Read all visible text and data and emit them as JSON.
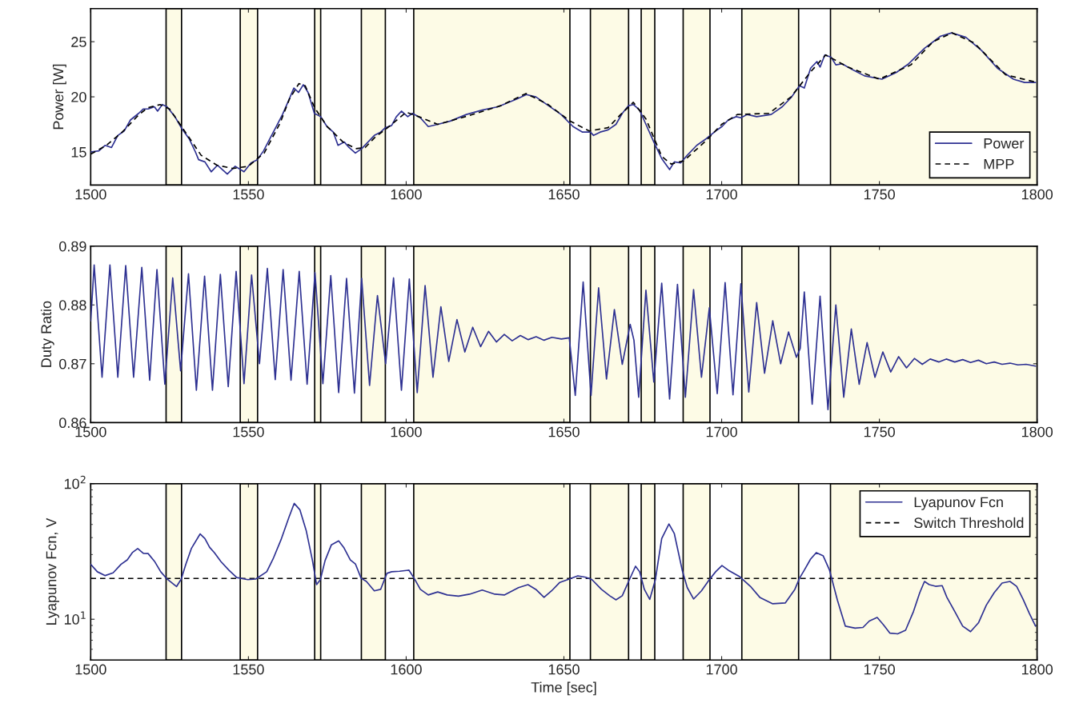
{
  "chart_data": [
    {
      "type": "line",
      "ylabel": "Power [W]",
      "xlim": [
        1500,
        1800
      ],
      "xticks": [
        1500,
        1550,
        1600,
        1650,
        1700,
        1750,
        1800
      ],
      "ylim": [
        12,
        28
      ],
      "yticks": [
        15,
        20,
        25
      ],
      "legend": "bottom right",
      "grid": false,
      "bands": [
        {
          "axis": "x",
          "from": 1523.9,
          "to": 1528.8,
          "color": "#fdfbe6"
        },
        {
          "axis": "x",
          "from": 1547.4,
          "to": 1552.9,
          "color": "#fdfbe6"
        },
        {
          "axis": "x",
          "from": 1571.0,
          "to": 1572.9,
          "color": "#fdfbe6"
        },
        {
          "axis": "x",
          "from": 1585.8,
          "to": 1593.4,
          "color": "#fdfbe6"
        },
        {
          "axis": "x",
          "from": 1602.4,
          "to": 1651.9,
          "color": "#fdfbe6"
        },
        {
          "axis": "x",
          "from": 1658.4,
          "to": 1670.5,
          "color": "#fdfbe6"
        },
        {
          "axis": "x",
          "from": 1674.5,
          "to": 1678.8,
          "color": "#fdfbe6"
        },
        {
          "axis": "x",
          "from": 1687.8,
          "to": 1696.3,
          "color": "#fdfbe6"
        },
        {
          "axis": "x",
          "from": 1706.4,
          "to": 1724.4,
          "color": "#fdfbe6"
        },
        {
          "axis": "x",
          "from": 1734.5,
          "to": 1800,
          "color": "#fdfbe6"
        }
      ],
      "series": [
        {
          "name": "Power",
          "color": "#2e3192",
          "line_style": "solid",
          "x": [
            1500,
            1502.6,
            1504.6,
            1506.6,
            1508.6,
            1510.6,
            1512.6,
            1515.2,
            1516.7,
            1518.2,
            1520.2,
            1521.2,
            1522.7,
            1524.2,
            1526.7,
            1528.7,
            1531.2,
            1533.2,
            1534.2,
            1536.2,
            1538.2,
            1540.2,
            1543.3,
            1545.8,
            1548.6,
            1550.8,
            1552.8,
            1554.8,
            1556.8,
            1558.8,
            1560.8,
            1562.8,
            1564.4,
            1565.9,
            1567.4,
            1568.9,
            1570.9,
            1572.9,
            1574.9,
            1576.9,
            1578.4,
            1580.4,
            1581.9,
            1583.9,
            1585.9,
            1587.9,
            1589.9,
            1591.9,
            1593.4,
            1595.4,
            1596.9,
            1598.5,
            1600.5,
            1602.0,
            1604.5,
            1607.0,
            1610.0,
            1614.0,
            1619.1,
            1624.1,
            1629.1,
            1635.1,
            1638.1,
            1641.1,
            1645.1,
            1649.1,
            1652.9,
            1655.9,
            1658.4,
            1659.4,
            1661.5,
            1664.0,
            1666.5,
            1668.5,
            1670.5,
            1672.0,
            1674.0,
            1676.0,
            1678.5,
            1681.0,
            1683.5,
            1685.0,
            1687.0,
            1689.1,
            1692.1,
            1695.1,
            1698.1,
            1700.1,
            1702.1,
            1704.6,
            1706.1,
            1708.1,
            1711.1,
            1715.7,
            1719.2,
            1722.2,
            1724.7,
            1726.2,
            1728.2,
            1730.2,
            1731.2,
            1732.7,
            1734.7,
            1736.2,
            1738.2,
            1741.2,
            1745.3,
            1750.8,
            1755.3,
            1759.3,
            1764.3,
            1769.4,
            1772.9,
            1777.4,
            1782.4,
            1787.4,
            1792.5,
            1796.0,
            1799.5
          ],
          "values": [
            15.0,
            15.1,
            15.6,
            15.4,
            16.5,
            16.9,
            17.9,
            18.5,
            18.9,
            18.9,
            19.1,
            18.7,
            19.3,
            19.1,
            18.2,
            17.2,
            16.2,
            15.0,
            14.3,
            14.1,
            13.2,
            13.8,
            13.0,
            13.7,
            13.2,
            14.0,
            14.3,
            15.1,
            16.2,
            17.3,
            18.4,
            19.7,
            20.8,
            20.4,
            21.1,
            20.4,
            18.5,
            18.2,
            17.3,
            16.8,
            15.6,
            15.9,
            15.4,
            14.9,
            15.3,
            15.9,
            16.5,
            16.8,
            17.2,
            17.4,
            18.2,
            18.7,
            18.2,
            18.5,
            18.1,
            17.3,
            17.5,
            17.8,
            18.4,
            18.8,
            19.1,
            19.8,
            20.2,
            20.0,
            19.2,
            18.4,
            17.3,
            16.8,
            16.8,
            16.5,
            16.8,
            17.0,
            17.5,
            18.5,
            19.2,
            19.3,
            18.8,
            17.5,
            15.9,
            14.4,
            13.4,
            14.1,
            14.0,
            14.7,
            15.6,
            16.2,
            16.9,
            17.3,
            17.9,
            18.2,
            18.1,
            18.4,
            18.2,
            18.4,
            19.1,
            20.0,
            21.0,
            20.8,
            22.6,
            23.2,
            22.7,
            23.8,
            23.6,
            22.9,
            23.0,
            22.5,
            21.9,
            21.6,
            22.2,
            23.0,
            24.4,
            25.5,
            25.8,
            25.4,
            24.2,
            22.6,
            21.6,
            21.3,
            21.3
          ]
        },
        {
          "name": "MPP",
          "color": "#000000",
          "line_style": "dashed",
          "x": [
            1500,
            1505,
            1510,
            1515,
            1518,
            1522,
            1525,
            1530,
            1535,
            1540,
            1545,
            1550,
            1555,
            1560,
            1563,
            1566,
            1568,
            1571,
            1575,
            1580,
            1584,
            1587,
            1590,
            1595,
            1600,
            1604,
            1610,
            1620,
            1630,
            1638,
            1645,
            1652,
            1658,
            1664,
            1668,
            1672,
            1676,
            1681,
            1684,
            1688,
            1695,
            1700,
            1705,
            1715,
            1722,
            1728,
            1733,
            1740,
            1750,
            1760,
            1767,
            1773,
            1780,
            1790,
            1800
          ],
          "values": [
            14.8,
            15.6,
            16.8,
            18.3,
            19.0,
            19.3,
            18.9,
            16.8,
            14.7,
            13.8,
            13.5,
            13.7,
            14.9,
            17.6,
            19.8,
            21.2,
            21.0,
            19.0,
            17.3,
            15.9,
            15.3,
            15.4,
            16.3,
            17.4,
            18.6,
            18.2,
            17.5,
            18.3,
            19.2,
            20.3,
            19.3,
            17.8,
            16.9,
            17.2,
            18.4,
            19.5,
            18.0,
            14.6,
            13.9,
            14.2,
            16.0,
            17.5,
            18.4,
            18.5,
            20.0,
            22.2,
            23.8,
            22.7,
            21.6,
            22.9,
            25.0,
            25.8,
            24.9,
            22.0,
            21.3
          ]
        }
      ]
    },
    {
      "type": "line",
      "ylabel": "Duty Ratio",
      "xlim": [
        1500,
        1800
      ],
      "xticks": [
        1500,
        1550,
        1600,
        1650,
        1700,
        1750,
        1800
      ],
      "ylim": [
        0.86,
        0.89
      ],
      "yticks": [
        0.86,
        0.87,
        0.88,
        0.89
      ],
      "grid": false,
      "bands": [
        {
          "axis": "x",
          "from": 1523.9,
          "to": 1528.8,
          "color": "#fdfbe6"
        },
        {
          "axis": "x",
          "from": 1547.4,
          "to": 1552.9,
          "color": "#fdfbe6"
        },
        {
          "axis": "x",
          "from": 1571.0,
          "to": 1572.9,
          "color": "#fdfbe6"
        },
        {
          "axis": "x",
          "from": 1585.8,
          "to": 1593.4,
          "color": "#fdfbe6"
        },
        {
          "axis": "x",
          "from": 1602.4,
          "to": 1651.9,
          "color": "#fdfbe6"
        },
        {
          "axis": "x",
          "from": 1658.4,
          "to": 1670.5,
          "color": "#fdfbe6"
        },
        {
          "axis": "x",
          "from": 1674.5,
          "to": 1678.8,
          "color": "#fdfbe6"
        },
        {
          "axis": "x",
          "from": 1687.8,
          "to": 1696.3,
          "color": "#fdfbe6"
        },
        {
          "axis": "x",
          "from": 1706.4,
          "to": 1724.4,
          "color": "#fdfbe6"
        },
        {
          "axis": "x",
          "from": 1734.5,
          "to": 1800,
          "color": "#fdfbe6"
        }
      ],
      "series": [
        {
          "color": "#2e3192",
          "line_style": "solid",
          "x": [
            1500,
            1501.1,
            1503.6,
            1506.1,
            1508.6,
            1511.1,
            1513.6,
            1516.2,
            1518.7,
            1521.0,
            1523.5,
            1526.0,
            1528.5,
            1531.0,
            1533.5,
            1536.1,
            1538.6,
            1541.1,
            1543.6,
            1546.1,
            1548.6,
            1551.0,
            1553.5,
            1556.0,
            1558.5,
            1561.0,
            1563.5,
            1566.1,
            1568.6,
            1571.1,
            1573.6,
            1576.1,
            1578.6,
            1581.1,
            1583.6,
            1585.9,
            1588.4,
            1590.9,
            1593.5,
            1596.0,
            1598.5,
            1601.0,
            1603.5,
            1606.0,
            1608.5,
            1611.0,
            1613.5,
            1616.1,
            1618.6,
            1621.1,
            1623.6,
            1626.1,
            1628.6,
            1631.1,
            1633.6,
            1636.2,
            1638.7,
            1641.2,
            1643.7,
            1646.2,
            1649.2,
            1651.7,
            1653.6,
            1656.1,
            1658.6,
            1661.0,
            1663.5,
            1666.0,
            1668.5,
            1671.0,
            1672.2,
            1673.7,
            1676.0,
            1678.5,
            1681.0,
            1683.5,
            1686.0,
            1688.5,
            1691.1,
            1693.6,
            1696.1,
            1698.6,
            1701.1,
            1703.6,
            1706.1,
            1708.6,
            1711.1,
            1713.6,
            1716.2,
            1718.7,
            1721.2,
            1723.7,
            1724.9,
            1726.2,
            1728.7,
            1731.2,
            1733.7,
            1736.2,
            1738.7,
            1741.1,
            1743.6,
            1746.1,
            1748.6,
            1751.1,
            1753.6,
            1756.1,
            1758.6,
            1761.1,
            1763.6,
            1766.1,
            1768.9,
            1771.2,
            1773.9,
            1776.4,
            1778.9,
            1781.4,
            1783.9,
            1786.4,
            1788.9,
            1791.4,
            1793.9,
            1796.5,
            1799.5
          ],
          "values": [
            0.8773,
            0.8868,
            0.8677,
            0.8868,
            0.8677,
            0.8867,
            0.8677,
            0.8864,
            0.8672,
            0.886,
            0.8665,
            0.8846,
            0.8688,
            0.8853,
            0.8655,
            0.8849,
            0.8655,
            0.8852,
            0.8661,
            0.8857,
            0.8666,
            0.8851,
            0.87,
            0.8862,
            0.8673,
            0.886,
            0.8672,
            0.8857,
            0.8665,
            0.8855,
            0.8666,
            0.885,
            0.8651,
            0.8845,
            0.865,
            0.8845,
            0.8663,
            0.8816,
            0.87,
            0.8846,
            0.8655,
            0.8844,
            0.8651,
            0.8833,
            0.8677,
            0.8797,
            0.8704,
            0.8775,
            0.872,
            0.8762,
            0.8729,
            0.8755,
            0.8737,
            0.875,
            0.8739,
            0.8748,
            0.8741,
            0.8746,
            0.874,
            0.8745,
            0.8742,
            0.8744,
            0.8646,
            0.8839,
            0.8646,
            0.8829,
            0.8674,
            0.8792,
            0.8699,
            0.8767,
            0.874,
            0.8643,
            0.8825,
            0.8669,
            0.8837,
            0.864,
            0.8835,
            0.8643,
            0.8826,
            0.8677,
            0.8795,
            0.8649,
            0.8838,
            0.8647,
            0.8836,
            0.8652,
            0.8804,
            0.8684,
            0.8773,
            0.87,
            0.8754,
            0.8711,
            0.8726,
            0.8822,
            0.8631,
            0.8815,
            0.8622,
            0.88,
            0.8643,
            0.8759,
            0.8665,
            0.8736,
            0.8677,
            0.872,
            0.8686,
            0.8712,
            0.8693,
            0.8709,
            0.8699,
            0.8708,
            0.8703,
            0.8708,
            0.8703,
            0.8707,
            0.8702,
            0.8706,
            0.87,
            0.8703,
            0.8699,
            0.8701,
            0.8698,
            0.8699,
            0.8696
          ]
        }
      ]
    },
    {
      "type": "line",
      "ylabel": "Lyapunov Fcn, V",
      "xlabel": "Time [sec]",
      "xlim": [
        1500,
        1800
      ],
      "xticks": [
        1500,
        1550,
        1600,
        1650,
        1700,
        1750,
        1800
      ],
      "ylim": [
        5,
        100
      ],
      "yticks": [
        {
          "value": 10,
          "label": "10$^{1}$"
        },
        {
          "value": 100,
          "label": "10$^{2}$"
        }
      ],
      "log": true,
      "legend": "top right",
      "grid": false,
      "ref_lines": [
        {
          "axis": "y",
          "value": 20,
          "label": "Switch Threshold",
          "color": "#000000",
          "line_style": "dashed"
        }
      ],
      "bands": [
        {
          "axis": "x",
          "from": 1523.9,
          "to": 1528.8,
          "color": "#fdfbe6"
        },
        {
          "axis": "x",
          "from": 1547.4,
          "to": 1552.9,
          "color": "#fdfbe6"
        },
        {
          "axis": "x",
          "from": 1571.0,
          "to": 1572.9,
          "color": "#fdfbe6"
        },
        {
          "axis": "x",
          "from": 1585.8,
          "to": 1593.4,
          "color": "#fdfbe6"
        },
        {
          "axis": "x",
          "from": 1602.4,
          "to": 1651.9,
          "color": "#fdfbe6"
        },
        {
          "axis": "x",
          "from": 1658.4,
          "to": 1670.5,
          "color": "#fdfbe6"
        },
        {
          "axis": "x",
          "from": 1674.5,
          "to": 1678.8,
          "color": "#fdfbe6"
        },
        {
          "axis": "x",
          "from": 1687.8,
          "to": 1696.3,
          "color": "#fdfbe6"
        },
        {
          "axis": "x",
          "from": 1706.4,
          "to": 1724.4,
          "color": "#fdfbe6"
        },
        {
          "axis": "x",
          "from": 1734.5,
          "to": 1800,
          "color": "#fdfbe6"
        }
      ],
      "series": [
        {
          "name": "Lyapunov Fcn",
          "color": "#2e3192",
          "line_style": "solid",
          "x": [
            1500,
            1502.1,
            1504.6,
            1507.1,
            1509.6,
            1511.6,
            1513.2,
            1514.9,
            1516.7,
            1518.2,
            1520.2,
            1522.2,
            1524.2,
            1527.2,
            1528.7,
            1530.2,
            1531.9,
            1534.7,
            1536.2,
            1537.7,
            1539.2,
            1541.3,
            1543.8,
            1546.3,
            1549.8,
            1552.3,
            1555.8,
            1557.8,
            1560.3,
            1562.8,
            1564.5,
            1566.3,
            1568.3,
            1570.3,
            1571.6,
            1572.8,
            1574.3,
            1576.3,
            1578.6,
            1580.3,
            1582.3,
            1583.9,
            1585.7,
            1587.4,
            1589.9,
            1591.9,
            1593.9,
            1595.4,
            1597.9,
            1600.9,
            1602.5,
            1604.5,
            1607.0,
            1610.0,
            1613.0,
            1616.6,
            1620.1,
            1624.1,
            1628.1,
            1631.1,
            1635.6,
            1638.6,
            1641.1,
            1643.7,
            1646.1,
            1648.7,
            1651.7,
            1654.4,
            1656.9,
            1658.9,
            1661.9,
            1664.5,
            1666.5,
            1668.5,
            1670.5,
            1672.7,
            1674.0,
            1675.5,
            1677.2,
            1679.0,
            1681.0,
            1683.3,
            1685.0,
            1687.5,
            1689.1,
            1691.1,
            1693.6,
            1696.1,
            1698.1,
            1700.1,
            1702.1,
            1705.6,
            1709.1,
            1712.1,
            1716.2,
            1720.2,
            1723.2,
            1724.7,
            1726.2,
            1728.2,
            1730.0,
            1732.2,
            1734.2,
            1736.7,
            1739.2,
            1742.3,
            1744.8,
            1746.8,
            1749.3,
            1751.3,
            1753.3,
            1755.8,
            1758.3,
            1760.8,
            1762.8,
            1764.3,
            1765.8,
            1767.8,
            1769.9,
            1771.4,
            1773.9,
            1776.4,
            1778.9,
            1781.4,
            1783.9,
            1786.4,
            1788.9,
            1791.4,
            1793.5,
            1795.5,
            1797.5,
            1799.5
          ],
          "values": [
            25.4,
            22.4,
            21.0,
            22.0,
            25.4,
            27.4,
            31.0,
            33.2,
            30.6,
            30.5,
            26.8,
            22.4,
            19.8,
            17.4,
            19.8,
            25.6,
            33.2,
            42.6,
            39.4,
            33.9,
            31.0,
            26.6,
            23.0,
            20.3,
            19.6,
            19.8,
            22.4,
            27.8,
            38.4,
            56.1,
            71.5,
            64.2,
            45.2,
            27.1,
            18.0,
            19.6,
            27.1,
            35.4,
            37.8,
            33.6,
            27.4,
            25.6,
            20.1,
            19.0,
            16.2,
            16.6,
            21.8,
            22.4,
            22.6,
            23.0,
            20.1,
            16.6,
            15.1,
            15.9,
            15.1,
            14.8,
            15.3,
            16.4,
            15.3,
            15.1,
            17.1,
            18.0,
            16.6,
            14.5,
            16.2,
            18.7,
            19.8,
            20.9,
            20.4,
            19.6,
            16.6,
            14.9,
            13.9,
            14.9,
            19.0,
            24.6,
            22.4,
            16.6,
            14.0,
            19.6,
            39.4,
            50.4,
            42.8,
            23.0,
            17.1,
            14.1,
            16.2,
            19.6,
            22.4,
            24.9,
            23.0,
            20.7,
            17.5,
            14.5,
            13.0,
            13.2,
            16.6,
            20.1,
            23.0,
            27.8,
            31.0,
            29.3,
            23.0,
            13.8,
            8.9,
            8.6,
            8.7,
            9.7,
            10.3,
            9.1,
            7.9,
            7.8,
            8.3,
            11.4,
            15.7,
            19.0,
            18.0,
            17.5,
            17.7,
            14.5,
            11.4,
            8.9,
            8.1,
            9.4,
            12.7,
            15.7,
            18.5,
            19.0,
            17.5,
            14.1,
            11.1,
            8.9
          ]
        }
      ]
    }
  ]
}
